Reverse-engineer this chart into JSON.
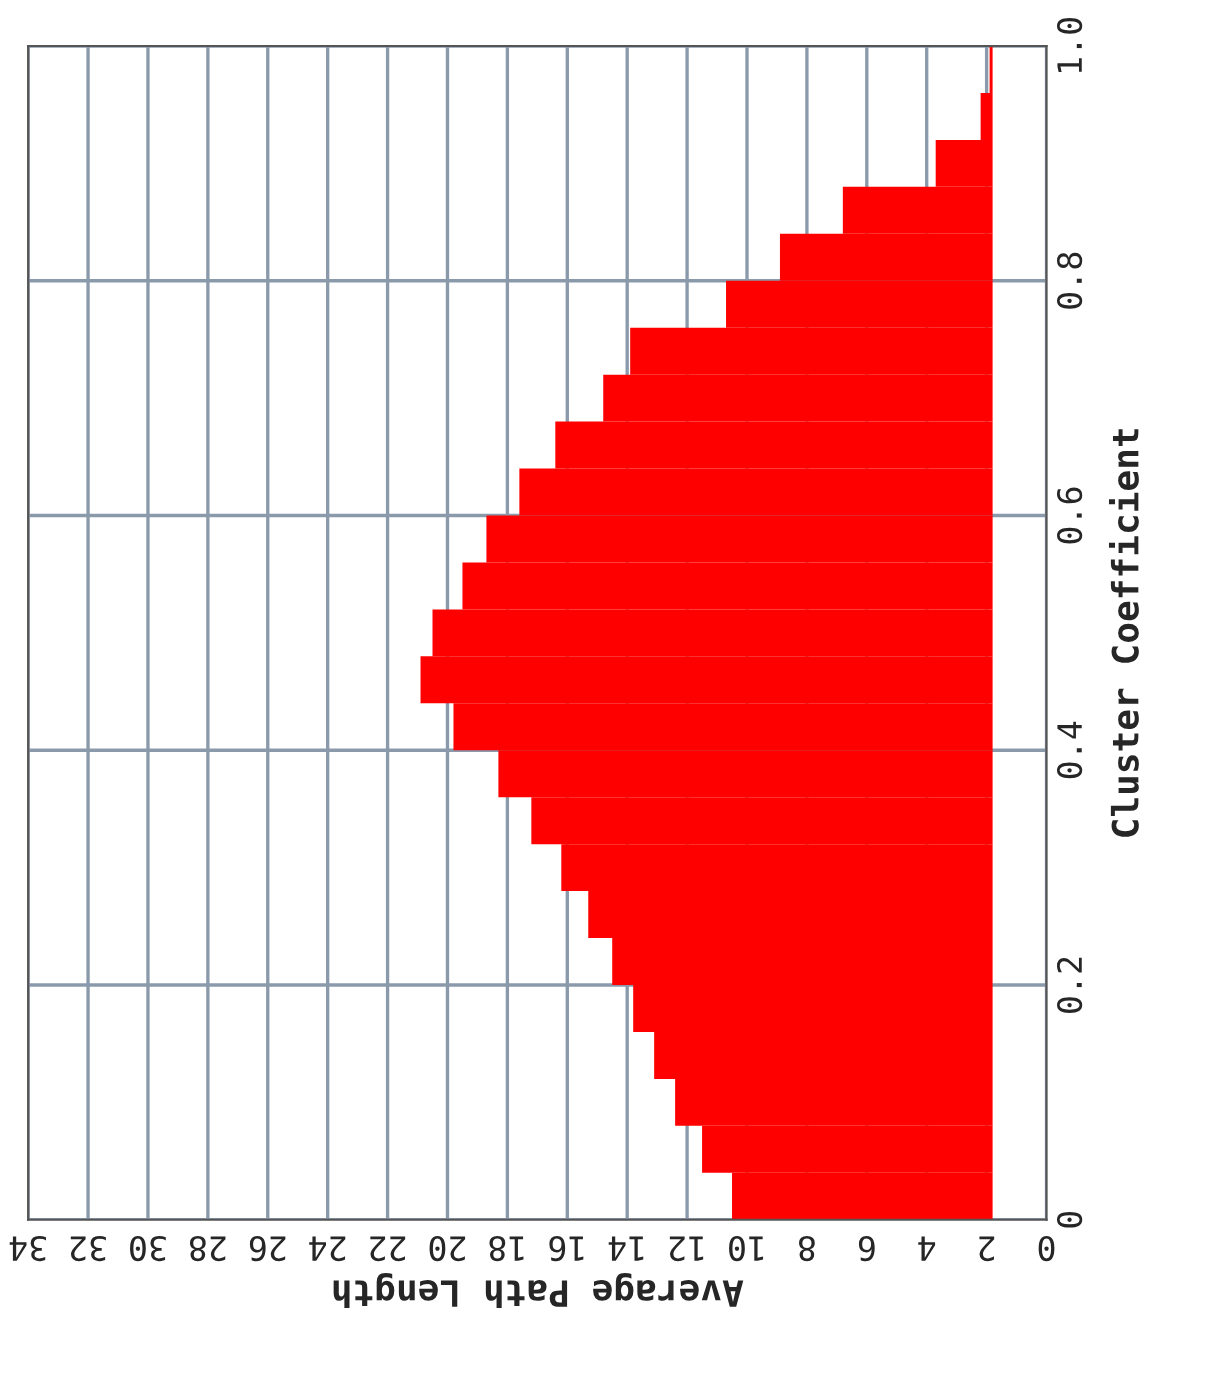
{
  "chart_data": {
    "type": "bar",
    "orientation": "horizontal",
    "xlabel": "Average Path Length",
    "ylabel": "Cluster Coefficient",
    "x": [
      0.02,
      0.06,
      0.1,
      0.14,
      0.18,
      0.22,
      0.26,
      0.3,
      0.34,
      0.38,
      0.42,
      0.46,
      0.5,
      0.54,
      0.58,
      0.62,
      0.66,
      0.7,
      0.74,
      0.78,
      0.82,
      0.86,
      0.9,
      0.94,
      0.98
    ],
    "base": [
      1.8,
      1.8,
      1.8,
      1.8,
      1.8,
      1.8,
      1.8,
      1.8,
      1.8,
      1.8,
      1.8,
      1.8,
      1.8,
      1.8,
      1.8,
      1.8,
      1.8,
      1.8,
      1.8,
      1.8,
      1.8,
      1.8,
      1.8,
      1.8,
      1.8
    ],
    "values": [
      8.7,
      9.7,
      10.6,
      11.3,
      12.0,
      12.7,
      13.5,
      14.4,
      15.4,
      16.5,
      18.0,
      19.1,
      18.7,
      17.7,
      16.9,
      15.8,
      14.6,
      13.0,
      12.1,
      8.9,
      7.1,
      5.0,
      1.9,
      0.4,
      0.1
    ],
    "color": "#ff0000",
    "xlim": [
      34,
      0
    ],
    "xticks": [
      34,
      32,
      30,
      28,
      26,
      24,
      22,
      20,
      18,
      16,
      14,
      12,
      10,
      8,
      6,
      4,
      2,
      0
    ],
    "ylim": [
      0,
      1
    ],
    "yticks": [
      0,
      0.2,
      0.4,
      0.6,
      0.8,
      {
        "value": 1.0,
        "label": "1.0"
      }
    ],
    "grid": true,
    "legend": false
  }
}
